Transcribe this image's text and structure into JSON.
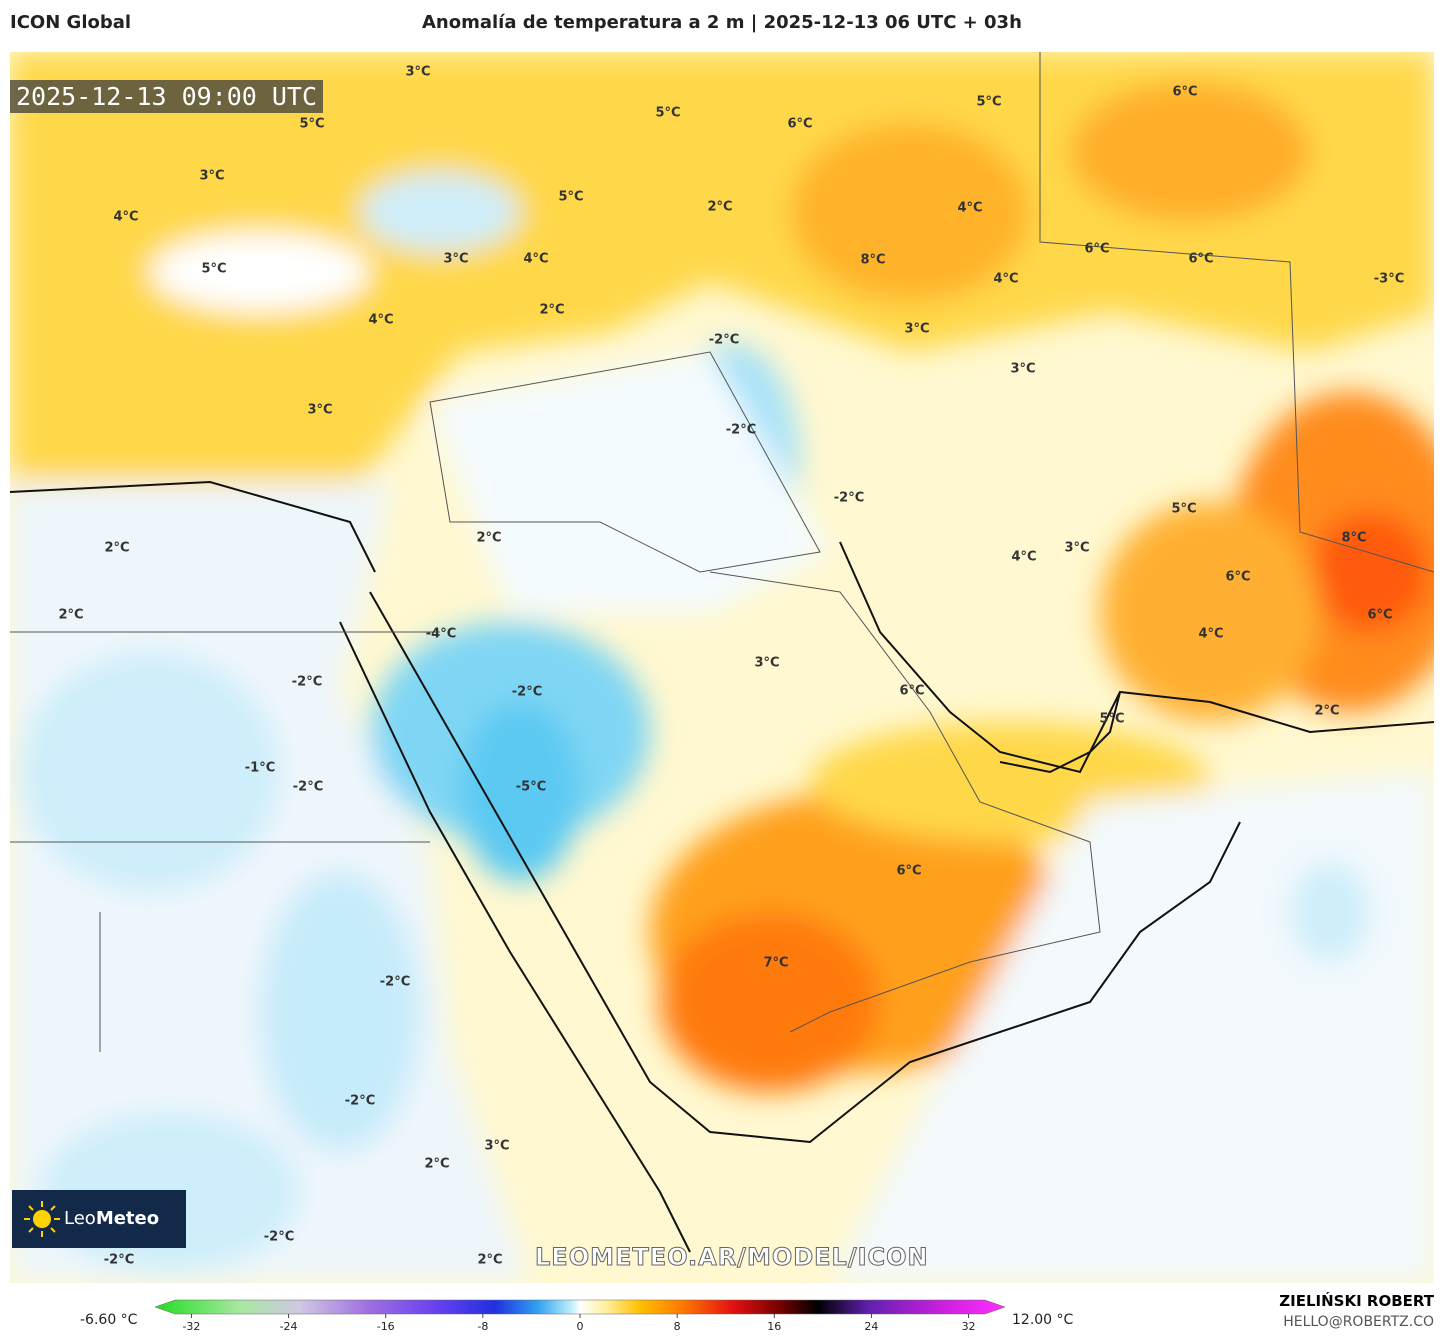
{
  "header": {
    "model": "ICON Global",
    "title": "Anomalía de temperatura a 2 m | 2025-12-13 06 UTC + 03h"
  },
  "map": {
    "timestamp": "2025-12-13 09:00 UTC",
    "watermark": "LEOMETEO.AR/MODEL/ICON",
    "logo": {
      "leo": "Leo",
      "meteo": "Meteo"
    },
    "labels": [
      "3°C",
      "5°C",
      "3°C",
      "4°C",
      "5°C",
      "4°C",
      "3°C",
      "3°C",
      "4°C",
      "5°C",
      "5°C",
      "2°C",
      "2°C",
      "6°C",
      "5°C",
      "6°C",
      "4°C",
      "8°C",
      "4°C",
      "6°C",
      "6°C",
      "-3°C",
      "3°C",
      "3°C",
      "-2°C",
      "-2°C",
      "-2°C",
      "2°C",
      "2°C",
      "2°C",
      "-4°C",
      "-2°C",
      "3°C",
      "6°C",
      "5°C",
      "8°C",
      "4°C",
      "3°C",
      "6°C",
      "4°C",
      "6°C",
      "2°C",
      "5°C",
      "-2°C",
      "-1°C",
      "-2°C",
      "-5°C",
      "6°C",
      "7°C",
      "-2°C",
      "-2°C",
      "3°C",
      "2°C",
      "-2°C",
      "-2°C",
      "2°C"
    ]
  },
  "colorbar": {
    "min_label": "-6.60 °C",
    "max_label": "12.00 °C",
    "range": [
      -35,
      35
    ],
    "ticks": [
      -32,
      -24,
      -16,
      -8,
      0,
      8,
      16,
      24,
      32
    ]
  },
  "footer": {
    "author": "ZIELIŃSKI ROBERT",
    "email": "HELLO@ROBERTZ.CO"
  }
}
